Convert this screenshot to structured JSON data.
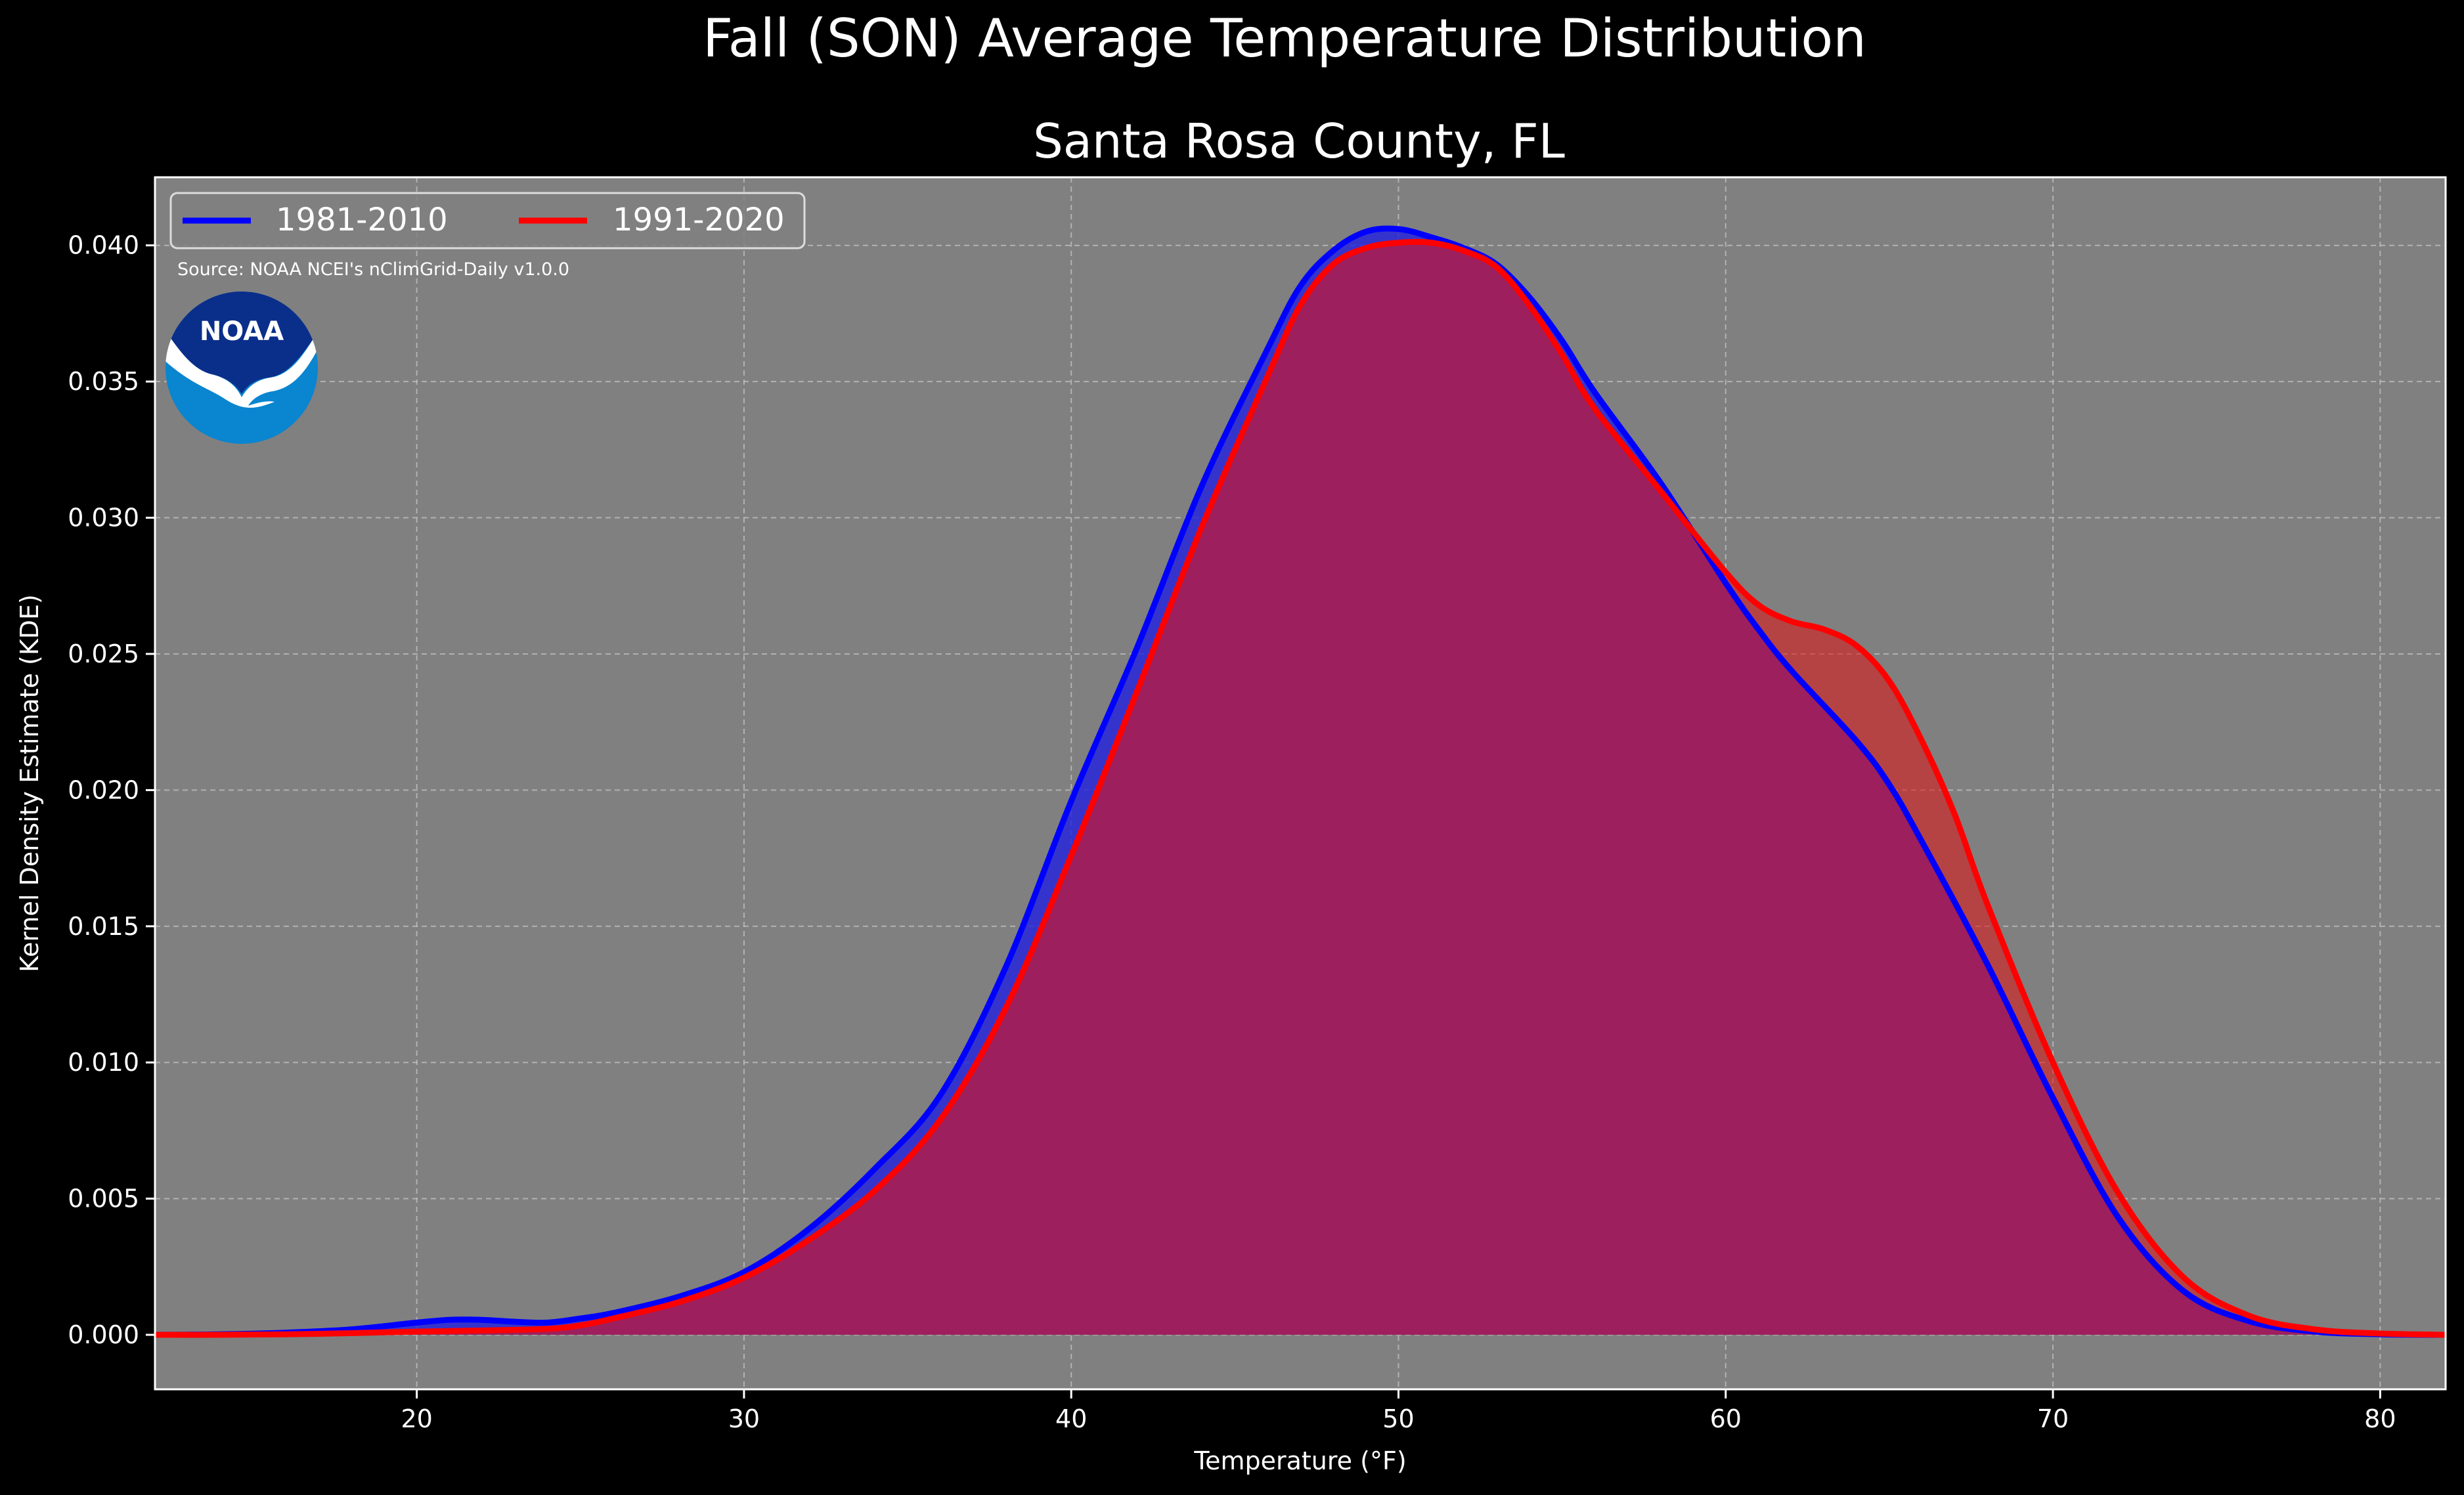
{
  "chart_data": {
    "type": "area",
    "title": "Fall (SON) Average Temperature Distribution",
    "subtitle": "Santa Rosa County, FL",
    "xlabel": "Temperature (°F)",
    "ylabel": "Kernel Density Estimate (KDE)",
    "xlim": [
      12,
      82
    ],
    "ylim": [
      -0.002,
      0.0425
    ],
    "xticks": [
      20,
      30,
      40,
      50,
      60,
      70,
      80
    ],
    "yticks": [
      0.0,
      0.005,
      0.01,
      0.015,
      0.02,
      0.025,
      0.03,
      0.035,
      0.04
    ],
    "ytick_labels": [
      "0.000",
      "0.005",
      "0.010",
      "0.015",
      "0.020",
      "0.025",
      "0.030",
      "0.035",
      "0.040"
    ],
    "grid": true,
    "legend_placement": "upper-left",
    "annotation": "Source: NOAA NCEI's nClimGrid-Daily v1.0.0",
    "logo_text": "NOAA",
    "colors": {
      "figure_bg": "#000000",
      "plot_bg": "#808080",
      "series1": "#0000ff",
      "series2": "#ff0000",
      "overlap_fill": "#9e1f5d",
      "text": "#ffffff",
      "logo_dark": "#0a2f8a",
      "logo_light": "#0a85cf"
    },
    "series": [
      {
        "name": "1981-2010",
        "color": "#0000ff",
        "points": [
          [
            12,
            0.0
          ],
          [
            14,
            2e-05
          ],
          [
            16,
            8e-05
          ],
          [
            18,
            0.0002
          ],
          [
            20,
            0.00045
          ],
          [
            21,
            0.00055
          ],
          [
            22,
            0.00055
          ],
          [
            23,
            0.00048
          ],
          [
            24,
            0.00045
          ],
          [
            25,
            0.0006
          ],
          [
            26,
            0.0008
          ],
          [
            28,
            0.0014
          ],
          [
            30,
            0.0023
          ],
          [
            32,
            0.0039
          ],
          [
            34,
            0.0061
          ],
          [
            36,
            0.0088
          ],
          [
            38,
            0.0135
          ],
          [
            40,
            0.0196
          ],
          [
            42,
            0.0252
          ],
          [
            44,
            0.0312
          ],
          [
            46,
            0.0362
          ],
          [
            47,
            0.0385
          ],
          [
            48,
            0.0398
          ],
          [
            49,
            0.0405
          ],
          [
            50,
            0.0406
          ],
          [
            51,
            0.0403
          ],
          [
            52,
            0.0399
          ],
          [
            53,
            0.0393
          ],
          [
            54,
            0.0381
          ],
          [
            55,
            0.0365
          ],
          [
            56,
            0.0346
          ],
          [
            58,
            0.0313
          ],
          [
            60,
            0.0276
          ],
          [
            61,
            0.0259
          ],
          [
            62,
            0.0244
          ],
          [
            64,
            0.0218
          ],
          [
            65,
            0.0202
          ],
          [
            66,
            0.0181
          ],
          [
            68,
            0.0136
          ],
          [
            70,
            0.0087
          ],
          [
            72,
            0.0043
          ],
          [
            74,
            0.0016
          ],
          [
            76,
            0.0005
          ],
          [
            78,
            0.00012
          ],
          [
            80,
            2e-05
          ],
          [
            82,
            0.0
          ]
        ]
      },
      {
        "name": "1991-2020",
        "color": "#ff0000",
        "points": [
          [
            12,
            0.0
          ],
          [
            14,
            0.0
          ],
          [
            16,
            2e-05
          ],
          [
            18,
            6e-05
          ],
          [
            20,
            0.00012
          ],
          [
            22,
            0.00016
          ],
          [
            24,
            0.00022
          ],
          [
            25,
            0.00035
          ],
          [
            26,
            0.0006
          ],
          [
            28,
            0.0012
          ],
          [
            30,
            0.0021
          ],
          [
            32,
            0.0035
          ],
          [
            34,
            0.0053
          ],
          [
            36,
            0.0079
          ],
          [
            38,
            0.012
          ],
          [
            40,
            0.0176
          ],
          [
            42,
            0.0236
          ],
          [
            44,
            0.0297
          ],
          [
            46,
            0.0352
          ],
          [
            47,
            0.0378
          ],
          [
            48,
            0.0393
          ],
          [
            49,
            0.0399
          ],
          [
            50,
            0.0401
          ],
          [
            51,
            0.0401
          ],
          [
            52,
            0.0398
          ],
          [
            53,
            0.0392
          ],
          [
            54,
            0.0378
          ],
          [
            55,
            0.036
          ],
          [
            56,
            0.034
          ],
          [
            58,
            0.031
          ],
          [
            60,
            0.028
          ],
          [
            61,
            0.0268
          ],
          [
            62,
            0.0262
          ],
          [
            63,
            0.0259
          ],
          [
            64,
            0.0253
          ],
          [
            65,
            0.024
          ],
          [
            66,
            0.0218
          ],
          [
            67,
            0.0191
          ],
          [
            68,
            0.0158
          ],
          [
            70,
            0.01
          ],
          [
            72,
            0.0052
          ],
          [
            74,
            0.0021
          ],
          [
            76,
            0.0007
          ],
          [
            78,
            0.0002
          ],
          [
            80,
            5e-05
          ],
          [
            82,
            0.0
          ]
        ]
      }
    ]
  }
}
